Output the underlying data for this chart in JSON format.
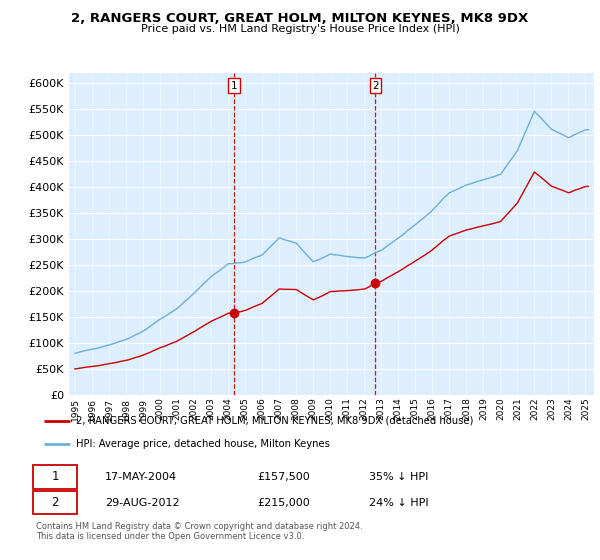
{
  "title": "2, RANGERS COURT, GREAT HOLM, MILTON KEYNES, MK8 9DX",
  "subtitle": "Price paid vs. HM Land Registry's House Price Index (HPI)",
  "legend_line1": "2, RANGERS COURT, GREAT HOLM, MILTON KEYNES, MK8 9DX (detached house)",
  "legend_line2": "HPI: Average price, detached house, Milton Keynes",
  "sale1_date": "17-MAY-2004",
  "sale1_price": 157500,
  "sale1_pct": "35% ↓ HPI",
  "sale2_date": "29-AUG-2012",
  "sale2_price": 215000,
  "sale2_pct": "24% ↓ HPI",
  "footer": "Contains HM Land Registry data © Crown copyright and database right 2024.\nThis data is licensed under the Open Government Licence v3.0.",
  "hpi_color": "#6ab0d8",
  "price_color": "#cc0000",
  "vline_color": "#cc0000",
  "bg_color": "#ddeeff",
  "ylim": [
    0,
    620000
  ],
  "yticks": [
    0,
    50000,
    100000,
    150000,
    200000,
    250000,
    300000,
    350000,
    400000,
    450000,
    500000,
    550000,
    600000
  ],
  "sale1_x": 2004.37,
  "sale2_x": 2012.66
}
